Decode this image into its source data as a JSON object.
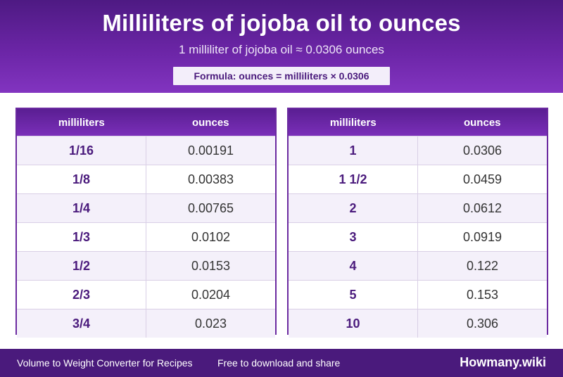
{
  "header": {
    "title": "Milliliters of jojoba oil to ounces",
    "subtitle": "1 milliliter of jojoba oil ≈ 0.0306 ounces",
    "formula": "Formula: ounces = milliliters × 0.0306"
  },
  "table_left": {
    "col1": "milliliters",
    "col2": "ounces",
    "rows": [
      {
        "ml": "1/16",
        "oz": "0.00191"
      },
      {
        "ml": "1/8",
        "oz": "0.00383"
      },
      {
        "ml": "1/4",
        "oz": "0.00765"
      },
      {
        "ml": "1/3",
        "oz": "0.0102"
      },
      {
        "ml": "1/2",
        "oz": "0.0153"
      },
      {
        "ml": "2/3",
        "oz": "0.0204"
      },
      {
        "ml": "3/4",
        "oz": "0.023"
      }
    ]
  },
  "table_right": {
    "col1": "milliliters",
    "col2": "ounces",
    "rows": [
      {
        "ml": "1",
        "oz": "0.0306"
      },
      {
        "ml": "1 1/2",
        "oz": "0.0459"
      },
      {
        "ml": "2",
        "oz": "0.0612"
      },
      {
        "ml": "3",
        "oz": "0.0919"
      },
      {
        "ml": "4",
        "oz": "0.122"
      },
      {
        "ml": "5",
        "oz": "0.153"
      },
      {
        "ml": "10",
        "oz": "0.306"
      }
    ]
  },
  "footer": {
    "left_text": "Volume to Weight Converter for Recipes",
    "middle_text": "Free to download and share",
    "brand": "Howmany.wiki"
  }
}
